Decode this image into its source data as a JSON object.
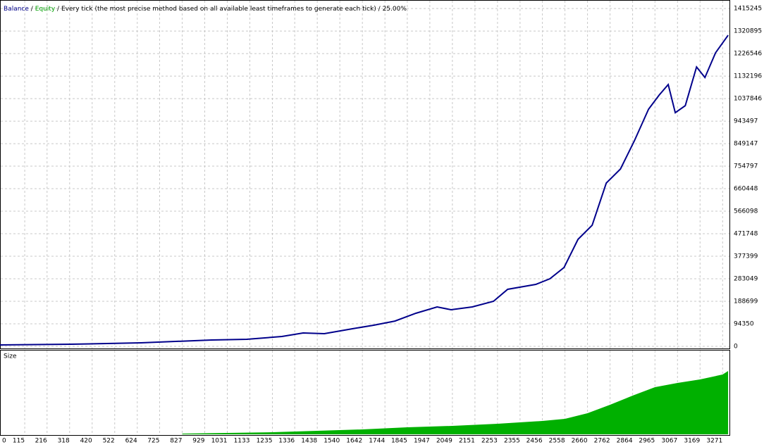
{
  "chart_data": [
    {
      "type": "line",
      "title": "Every tick (the most precise method based on all available least timeframes to generate each tick) / 25.00%",
      "separator": "/",
      "x": [
        0,
        322,
        641,
        960,
        1119,
        1278,
        1374,
        1470,
        1597,
        1693,
        1789,
        1884,
        1980,
        2043,
        2139,
        2235,
        2299,
        2426,
        2490,
        2554,
        2617,
        2681,
        2745,
        2809,
        2872,
        2936,
        2984,
        3025,
        3057,
        3102,
        3153,
        3191,
        3239,
        3296
      ],
      "series": [
        {
          "name": "Balance",
          "color": "#00008b",
          "values": [
            5900,
            8800,
            14700,
            26500,
            29500,
            41300,
            56000,
            53000,
            73700,
            88500,
            106000,
            138600,
            165100,
            153300,
            165100,
            188700,
            238800,
            259500,
            283000,
            330200,
            448200,
            507100,
            684000,
            743000,
            861000,
            993600,
            1052600,
            1096800,
            978900,
            1008400,
            1170500,
            1126300,
            1229500,
            1303200
          ]
        },
        {
          "name": "Equity",
          "color": "#00a000",
          "values": [
            5900,
            8800,
            14700,
            26500,
            29500,
            41300,
            56000,
            53000,
            73700,
            88500,
            106000,
            138600,
            165100,
            153300,
            165100,
            188700,
            238800,
            259500,
            283000,
            330200,
            448200,
            507100,
            684000,
            743000,
            861000,
            993600,
            1052600,
            1096800,
            978900,
            1008400,
            1170500,
            1126300,
            1229500,
            1303200
          ]
        }
      ],
      "xlim": [
        0,
        3302
      ],
      "ylim": [
        0,
        1448000
      ],
      "yticks": [
        0,
        94350,
        188699,
        283049,
        377399,
        471748,
        566098,
        660448,
        754797,
        849147,
        943497,
        1037846,
        1132196,
        1226546,
        1320895,
        1415245
      ],
      "grid": true
    },
    {
      "type": "area",
      "title": "Size",
      "color": "#00b000",
      "x": [
        827,
        1031,
        1235,
        1438,
        1642,
        1845,
        2049,
        2253,
        2456,
        2558,
        2660,
        2762,
        2864,
        2965,
        3067,
        3169,
        3271,
        3296
      ],
      "values": [
        1,
        2,
        3,
        5,
        7,
        10,
        12,
        15,
        19,
        22,
        30,
        42,
        55,
        67,
        73,
        78,
        85,
        90
      ],
      "xlim": [
        0,
        3302
      ],
      "ylim": [
        0,
        104
      ],
      "xticks": [
        0,
        115,
        216,
        318,
        420,
        522,
        624,
        725,
        827,
        929,
        1031,
        1133,
        1235,
        1336,
        1438,
        1540,
        1642,
        1744,
        1845,
        1947,
        2049,
        2151,
        2253,
        2355,
        2456,
        2558,
        2660,
        2762,
        2864,
        2965,
        3067,
        3169,
        3271
      ],
      "grid": true
    }
  ]
}
